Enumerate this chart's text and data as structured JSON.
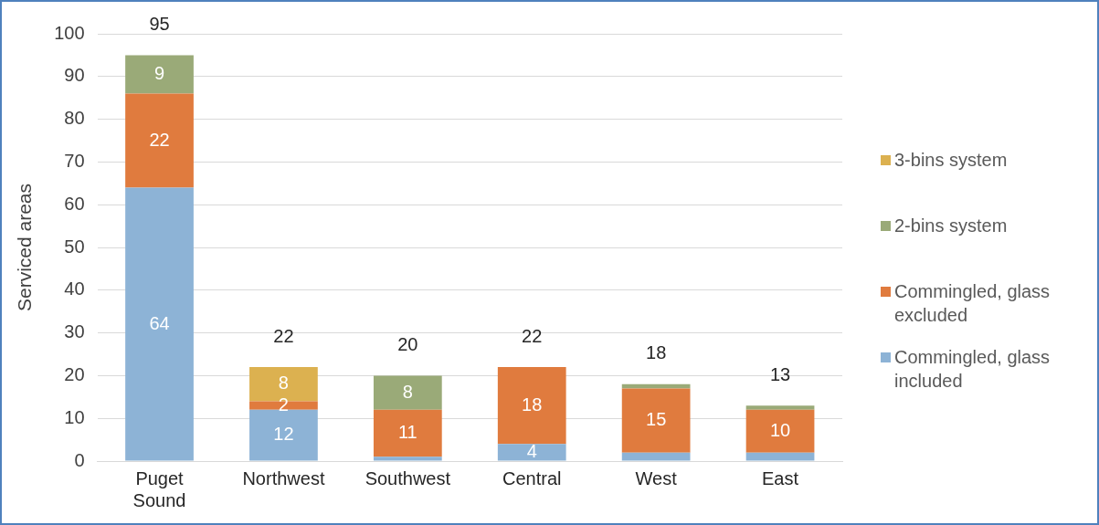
{
  "chart_data": {
    "type": "bar",
    "stacked": true,
    "ylabel": "Serviced areas",
    "categories": [
      "Puget\nSound",
      "Northwest",
      "Southwest",
      "Central",
      "West",
      "East"
    ],
    "series": [
      {
        "name": "Commingled, glass included",
        "color": "#8db3d6",
        "values": [
          64,
          12,
          1,
          4,
          2,
          2
        ],
        "value_labels": [
          "64",
          "12",
          null,
          "4",
          null,
          null
        ]
      },
      {
        "name": "Commingled, glass excluded",
        "color": "#e07b3e",
        "values": [
          22,
          2,
          11,
          18,
          15,
          10
        ],
        "value_labels": [
          "22",
          "2",
          "11",
          "18",
          "15",
          "10"
        ]
      },
      {
        "name": "2-bins system",
        "color": "#9aaa78",
        "values": [
          9,
          0,
          8,
          0,
          1,
          1
        ],
        "value_labels": [
          "9",
          null,
          "8",
          null,
          null,
          null
        ]
      },
      {
        "name": "3-bins system",
        "color": "#dcb150",
        "values": [
          0,
          8,
          0,
          0,
          0,
          0
        ],
        "value_labels": [
          null,
          "8",
          null,
          null,
          null,
          null
        ]
      }
    ],
    "totals": [
      "95",
      "22",
      "20",
      "22",
      "18",
      "13"
    ],
    "ylim": [
      0,
      100
    ],
    "yticks": [
      0,
      10,
      20,
      30,
      40,
      50,
      60,
      70,
      80,
      90,
      100
    ],
    "grid": "y",
    "legend": "right"
  }
}
